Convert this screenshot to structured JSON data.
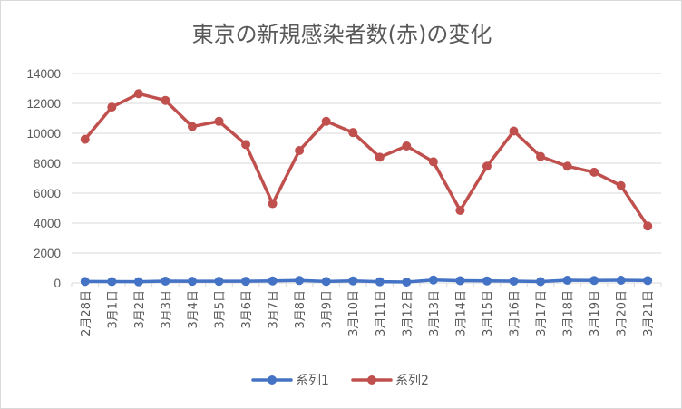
{
  "chart_data": {
    "type": "line",
    "title": "東京の新規感染者数(赤)の変化",
    "xlabel": "",
    "ylabel": "",
    "ylim": [
      0,
      14000
    ],
    "yticks": [
      "0",
      "2000",
      "4000",
      "6000",
      "8000",
      "10000",
      "12000",
      "14000"
    ],
    "categories": [
      "2月28日",
      "3月1日",
      "3月2日",
      "3月3日",
      "3月4日",
      "3月5日",
      "3月6日",
      "3月7日",
      "3月8日",
      "3月9日",
      "3月10日",
      "3月11日",
      "3月12日",
      "3月13日",
      "3月14日",
      "3月15日",
      "3月16日",
      "3月17日",
      "3月18日",
      "3月19日",
      "3月20日",
      "3月21日"
    ],
    "series": [
      {
        "name": "系列1",
        "color": "#4472c4",
        "values": [
          100,
          90,
          80,
          120,
          110,
          110,
          110,
          140,
          170,
          100,
          140,
          80,
          60,
          200,
          150,
          140,
          120,
          90,
          180,
          170,
          180,
          160
        ]
      },
      {
        "name": "系列2",
        "color": "#c0504d",
        "values": [
          9600,
          11750,
          12650,
          12200,
          10450,
          10800,
          9250,
          5300,
          8850,
          10800,
          10050,
          8400,
          9150,
          8100,
          4850,
          7800,
          10150,
          8450,
          7800,
          7400,
          6500,
          3800
        ]
      }
    ],
    "grid": true,
    "legend": "bottom"
  }
}
